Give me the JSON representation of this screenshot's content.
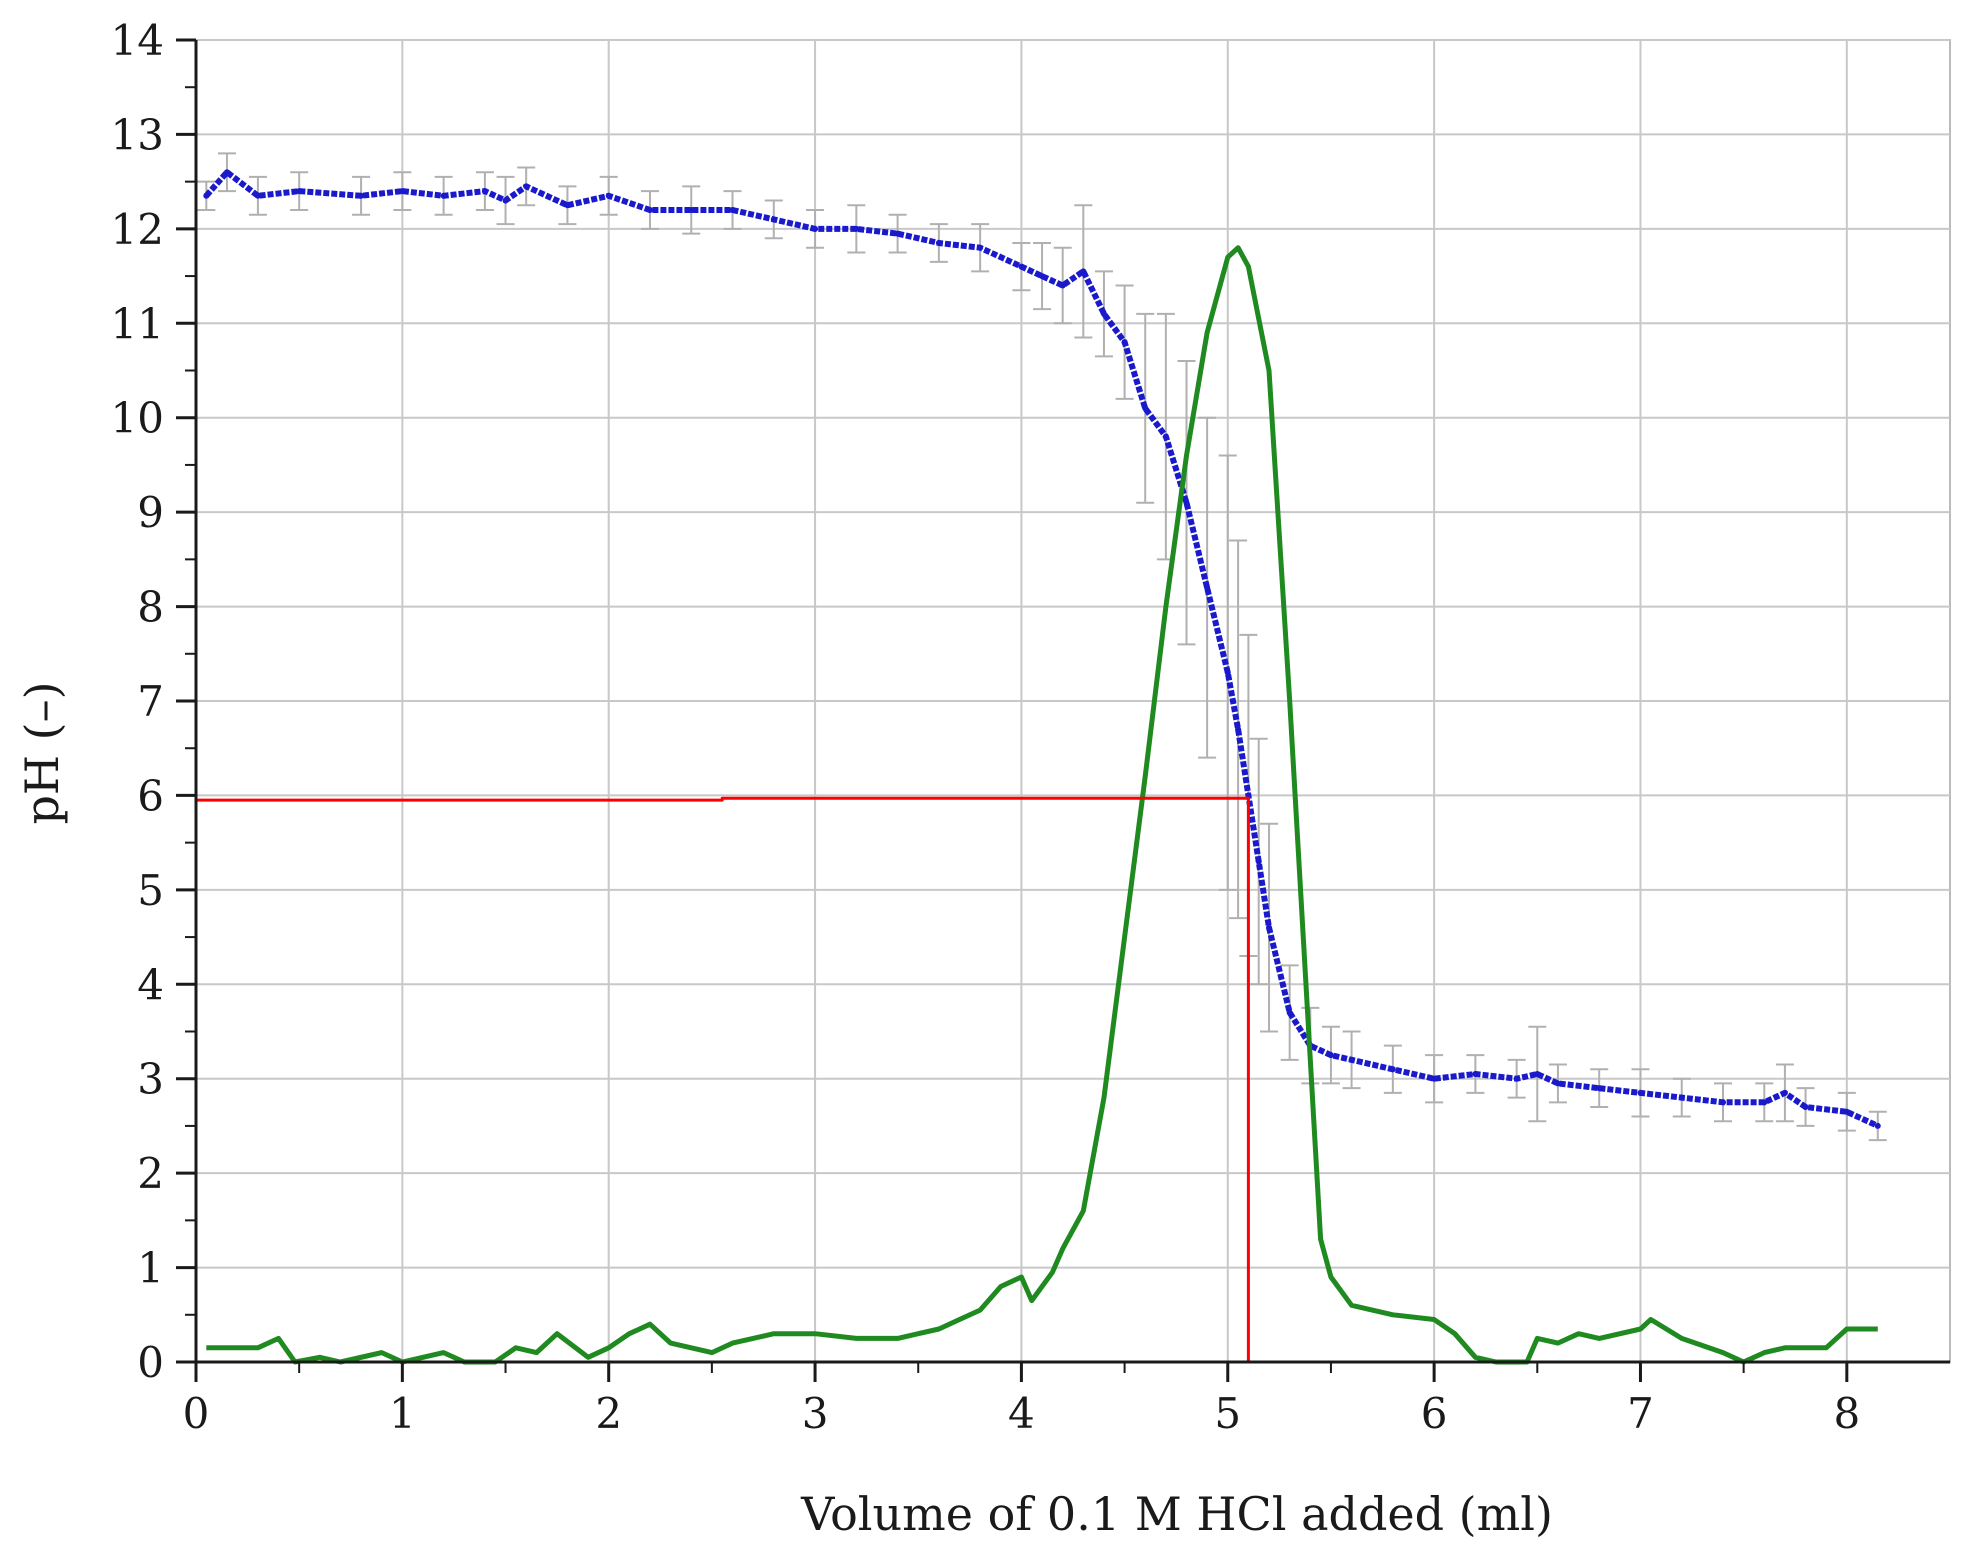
{
  "chart_data": {
    "type": "line",
    "title": "",
    "xlabel": "Volume of 0.1 M HCl added (ml)",
    "ylabel": "pH (–)",
    "xlim": [
      0,
      8.5
    ],
    "ylim": [
      0,
      14
    ],
    "grid": true,
    "x_ticks": [
      0,
      1,
      2,
      3,
      4,
      5,
      6,
      7,
      8
    ],
    "y_ticks": [
      0,
      1,
      2,
      3,
      4,
      5,
      6,
      7,
      8,
      9,
      10,
      11,
      12,
      13,
      14
    ],
    "x_tick_labels": [
      "0",
      "1",
      "2",
      "3",
      "4",
      "5",
      "6",
      "7",
      "8"
    ],
    "y_tick_labels": [
      "0",
      "1",
      "2",
      "3",
      "4",
      "5",
      "6",
      "7",
      "8",
      "9",
      "10",
      "11",
      "12",
      "13",
      "14"
    ],
    "series": [
      {
        "color": "#1a1acc",
        "style": "dotted-line-with-error-bars",
        "x": [
          0.05,
          0.15,
          0.3,
          0.5,
          0.8,
          1.0,
          1.2,
          1.4,
          1.5,
          1.6,
          1.8,
          2.0,
          2.2,
          2.4,
          2.6,
          2.8,
          3.0,
          3.2,
          3.4,
          3.6,
          3.8,
          4.0,
          4.1,
          4.2,
          4.3,
          4.4,
          4.5,
          4.6,
          4.7,
          4.8,
          4.9,
          5.0,
          5.05,
          5.1,
          5.15,
          5.2,
          5.3,
          5.4,
          5.5,
          5.6,
          5.8,
          6.0,
          6.2,
          6.4,
          6.5,
          6.6,
          6.8,
          7.0,
          7.2,
          7.4,
          7.6,
          7.7,
          7.8,
          8.0,
          8.15
        ],
        "y": [
          12.35,
          12.6,
          12.35,
          12.4,
          12.35,
          12.4,
          12.35,
          12.4,
          12.3,
          12.45,
          12.25,
          12.35,
          12.2,
          12.2,
          12.2,
          12.1,
          12.0,
          12.0,
          11.95,
          11.85,
          11.8,
          11.6,
          11.5,
          11.4,
          11.55,
          11.1,
          10.8,
          10.1,
          9.8,
          9.1,
          8.2,
          7.3,
          6.7,
          6.0,
          5.3,
          4.6,
          3.7,
          3.35,
          3.25,
          3.2,
          3.1,
          3.0,
          3.05,
          3.0,
          3.05,
          2.95,
          2.9,
          2.85,
          2.8,
          2.75,
          2.75,
          2.85,
          2.7,
          2.65,
          2.5
        ],
        "error": [
          0.15,
          0.2,
          0.2,
          0.2,
          0.2,
          0.2,
          0.2,
          0.2,
          0.25,
          0.2,
          0.2,
          0.2,
          0.2,
          0.25,
          0.2,
          0.2,
          0.2,
          0.25,
          0.2,
          0.2,
          0.25,
          0.25,
          0.35,
          0.4,
          0.7,
          0.45,
          0.6,
          1.0,
          1.3,
          1.5,
          1.8,
          2.3,
          2.0,
          1.7,
          1.3,
          1.1,
          0.5,
          0.4,
          0.3,
          0.3,
          0.25,
          0.25,
          0.2,
          0.2,
          0.5,
          0.2,
          0.2,
          0.25,
          0.2,
          0.2,
          0.2,
          0.3,
          0.2,
          0.2,
          0.15
        ]
      },
      {
        "color": "#1f8a1f",
        "style": "solid",
        "x": [
          0.05,
          0.3,
          0.4,
          0.48,
          0.6,
          0.7,
          0.9,
          1.0,
          1.1,
          1.2,
          1.3,
          1.45,
          1.55,
          1.65,
          1.75,
          1.9,
          2.0,
          2.1,
          2.2,
          2.3,
          2.4,
          2.5,
          2.6,
          2.8,
          3.0,
          3.2,
          3.4,
          3.5,
          3.6,
          3.7,
          3.8,
          3.9,
          4.0,
          4.05,
          4.15,
          4.2,
          4.3,
          4.4,
          4.5,
          4.6,
          4.7,
          4.8,
          4.9,
          5.0,
          5.05,
          5.1,
          5.2,
          5.3,
          5.4,
          5.45,
          5.5,
          5.6,
          5.8,
          6.0,
          6.1,
          6.2,
          6.3,
          6.45,
          6.5,
          6.6,
          6.7,
          6.8,
          7.0,
          7.05,
          7.2,
          7.4,
          7.5,
          7.6,
          7.7,
          7.9,
          8.0,
          8.15
        ],
        "y": [
          0.15,
          0.15,
          0.25,
          0.0,
          0.05,
          0.0,
          0.1,
          0.0,
          0.05,
          0.1,
          0.0,
          0.0,
          0.15,
          0.1,
          0.3,
          0.05,
          0.15,
          0.3,
          0.4,
          0.2,
          0.15,
          0.1,
          0.2,
          0.3,
          0.3,
          0.25,
          0.25,
          0.3,
          0.35,
          0.45,
          0.55,
          0.8,
          0.9,
          0.65,
          0.95,
          1.2,
          1.6,
          2.8,
          4.5,
          6.2,
          8.0,
          9.6,
          10.9,
          11.7,
          11.8,
          11.6,
          10.5,
          7.0,
          3.2,
          1.3,
          0.9,
          0.6,
          0.5,
          0.45,
          0.3,
          0.05,
          0.0,
          0.0,
          0.25,
          0.2,
          0.3,
          0.25,
          0.35,
          0.45,
          0.25,
          0.1,
          0.0,
          0.1,
          0.15,
          0.15,
          0.35,
          0.35
        ]
      },
      {
        "color": "#ff0000",
        "style": "solid",
        "x": [
          0,
          2.55,
          2.55,
          5.1,
          5.1
        ],
        "y": [
          5.95,
          5.95,
          5.97,
          5.97,
          0
        ]
      }
    ]
  }
}
